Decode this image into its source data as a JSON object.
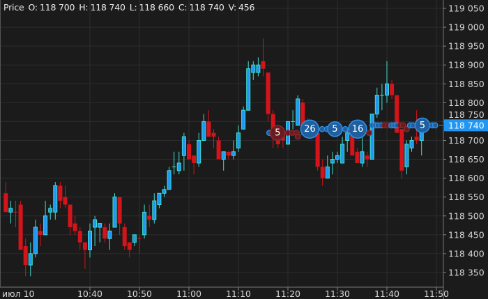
{
  "header": {
    "instrument": "Price",
    "open_label": "O:",
    "open": "118 700",
    "high_label": "H:",
    "high": "118 740",
    "low_label": "L:",
    "low": "118 660",
    "close_label": "C:",
    "close": "118 740",
    "volume_label": "V:",
    "volume": "456"
  },
  "current_price_label": "118 740",
  "colors": {
    "background": "#1b1b1b",
    "grid": "#2d2d2d",
    "bull_body": "#2196f3",
    "bull_outline": "#3fe0d0",
    "bear": "#d4141a",
    "price_tag": "#2196f3",
    "buy_marker": "#1f5f9e",
    "buy_marker_border": "#3190ea",
    "sell_marker": "#6b1b1f",
    "sell_marker_border": "#8a2b30"
  },
  "chart_data": {
    "type": "candlestick",
    "interval": "1 minute",
    "date_label": "июл 10",
    "x_ticks": [
      "10:40",
      "10:50",
      "11:00",
      "11:10",
      "11:20",
      "11:30",
      "11:40",
      "11:50"
    ],
    "y_ticks": [
      "119 050",
      "119 000",
      "118 950",
      "118 900",
      "118 850",
      "118 800",
      "118 750",
      "118 700",
      "118 650",
      "118 600",
      "118 550",
      "118 500",
      "118 450",
      "118 400",
      "118 350"
    ],
    "ylim": [
      118325,
      119070
    ],
    "grid": true,
    "last_price": 118740,
    "candles_fields": [
      "time",
      "open",
      "high",
      "low",
      "close"
    ],
    "candles": [
      [
        "10:23",
        118560,
        118590,
        118510,
        118510
      ],
      [
        "10:24",
        118510,
        118540,
        118480,
        118520
      ],
      [
        "10:25",
        118510,
        118540,
        118470,
        118510,
        "down"
      ],
      [
        "10:26",
        118530,
        118540,
        118410,
        118410
      ],
      [
        "10:27",
        118420,
        118440,
        118340,
        118370
      ],
      [
        "10:28",
        118370,
        118430,
        118340,
        118400
      ],
      [
        "10:29",
        118400,
        118490,
        118390,
        118470
      ],
      [
        "10:30",
        118460,
        118480,
        118420,
        118450
      ],
      [
        "10:31",
        118450,
        118540,
        118450,
        118500
      ],
      [
        "10:32",
        118510,
        118530,
        118490,
        118520
      ],
      [
        "10:33",
        118510,
        118590,
        118490,
        118580
      ],
      [
        "10:34",
        118580,
        118590,
        118520,
        118540
      ],
      [
        "10:35",
        118550,
        118580,
        118520,
        118530
      ],
      [
        "10:36",
        118530,
        118530,
        118450,
        118470
      ],
      [
        "10:37",
        118480,
        118500,
        118450,
        118460
      ],
      [
        "10:38",
        118460,
        118470,
        118410,
        118430
      ],
      [
        "10:39",
        118430,
        118430,
        118360,
        118410
      ],
      [
        "10:40",
        118410,
        118480,
        118390,
        118460
      ],
      [
        "10:41",
        118470,
        118500,
        118420,
        118490
      ],
      [
        "10:42",
        118470,
        118480,
        118430,
        118480
      ],
      [
        "10:43",
        118470,
        118480,
        118430,
        118440
      ],
      [
        "10:44",
        118440,
        118480,
        118410,
        118460
      ],
      [
        "10:45",
        118470,
        118560,
        118470,
        118550
      ],
      [
        "10:46",
        118550,
        118550,
        118450,
        118480
      ],
      [
        "10:47",
        118470,
        118480,
        118410,
        118420
      ],
      [
        "10:48",
        118430,
        118430,
        118390,
        118410
      ],
      [
        "10:49",
        118430,
        118450,
        118420,
        118450
      ],
      [
        "10:50",
        118440,
        118450,
        118400,
        118440,
        "down"
      ],
      [
        "10:51",
        118450,
        118530,
        118440,
        118510
      ],
      [
        "10:52",
        118500,
        118530,
        118470,
        118490
      ],
      [
        "10:53",
        118490,
        118560,
        118480,
        118540
      ],
      [
        "10:54",
        118530,
        118560,
        118520,
        118560
      ],
      [
        "10:55",
        118560,
        118580,
        118550,
        118570
      ],
      [
        "10:56",
        118570,
        118630,
        118570,
        118620
      ],
      [
        "10:57",
        118630,
        118670,
        118610,
        118630
      ],
      [
        "10:58",
        118620,
        118670,
        118610,
        118640
      ],
      [
        "10:59",
        118660,
        118720,
        118620,
        118710
      ],
      [
        "11:00",
        118690,
        118700,
        118650,
        118650
      ],
      [
        "11:01",
        118660,
        118660,
        118610,
        118640
      ],
      [
        "11:02",
        118640,
        118720,
        118630,
        118700
      ],
      [
        "11:03",
        118700,
        118770,
        118700,
        118750
      ],
      [
        "11:04",
        118750,
        118780,
        118710,
        118710
      ],
      [
        "11:05",
        118720,
        118730,
        118680,
        118710
      ],
      [
        "11:06",
        118700,
        118710,
        118650,
        118650
      ],
      [
        "11:07",
        118650,
        118670,
        118620,
        118670
      ],
      [
        "11:08",
        118670,
        118670,
        118650,
        118660
      ],
      [
        "11:09",
        118660,
        118700,
        118650,
        118670
      ],
      [
        "11:10",
        118680,
        118740,
        118670,
        118720
      ],
      [
        "11:11",
        118730,
        118790,
        118730,
        118780
      ],
      [
        "11:12",
        118780,
        118910,
        118780,
        118890
      ],
      [
        "11:13",
        118880,
        118910,
        118860,
        118900
      ],
      [
        "11:14",
        118880,
        118920,
        118870,
        118900
      ],
      [
        "11:15",
        118910,
        118970,
        118870,
        118890
      ],
      [
        "11:16",
        118880,
        118880,
        118750,
        118770
      ],
      [
        "11:17",
        118770,
        118780,
        118680,
        118710
      ],
      [
        "11:18",
        118710,
        118710,
        118680,
        118690
      ],
      [
        "11:19",
        118710,
        118720,
        118680,
        118700
      ],
      [
        "11:20",
        118690,
        118750,
        118690,
        118750
      ],
      [
        "11:21",
        118750,
        118780,
        118730,
        118750
      ],
      [
        "11:22",
        118740,
        118820,
        118740,
        118810
      ],
      [
        "11:23",
        118800,
        118810,
        118730,
        118740
      ],
      [
        "11:24",
        118740,
        118760,
        118720,
        118730
      ],
      [
        "11:25",
        118730,
        118740,
        118710,
        118720
      ],
      [
        "11:26",
        118720,
        118720,
        118620,
        118630
      ],
      [
        "11:27",
        118630,
        118650,
        118580,
        118600
      ],
      [
        "11:28",
        118600,
        118660,
        118600,
        118630
      ],
      [
        "11:29",
        118640,
        118670,
        118610,
        118650
      ],
      [
        "11:30",
        118650,
        118670,
        118640,
        118660
      ],
      [
        "11:31",
        118640,
        118710,
        118640,
        118690
      ],
      [
        "11:32",
        118700,
        118730,
        118670,
        118720
      ],
      [
        "11:33",
        118720,
        118720,
        118660,
        118660
      ],
      [
        "11:34",
        118670,
        118680,
        118640,
        118640
      ],
      [
        "11:35",
        118640,
        118720,
        118630,
        118670
      ],
      [
        "11:36",
        118660,
        118670,
        118630,
        118650
      ],
      [
        "11:37",
        118650,
        118770,
        118650,
        118770
      ],
      [
        "11:38",
        118770,
        118840,
        118760,
        118820
      ],
      [
        "11:39",
        118820,
        118850,
        118780,
        118820
      ],
      [
        "11:40",
        118820,
        118910,
        118800,
        118850
      ],
      [
        "11:41",
        118850,
        118860,
        118810,
        118820
      ],
      [
        "11:42",
        118820,
        118820,
        118720,
        118720
      ],
      [
        "11:43",
        118730,
        118730,
        118600,
        118620
      ],
      [
        "11:44",
        118630,
        118700,
        118610,
        118690
      ],
      [
        "11:45",
        118680,
        118710,
        118670,
        118700
      ],
      [
        "11:46",
        118710,
        118780,
        118690,
        118700
      ],
      [
        "11:47",
        118700,
        118740,
        118660,
        118740
      ]
    ],
    "trade_markers_fields": [
      "time",
      "price",
      "side",
      "size"
    ],
    "trade_markers": [
      [
        "11:16:15",
        118720,
        "buy",
        ""
      ],
      [
        "11:17:55",
        118720,
        "sell",
        "5"
      ],
      [
        "11:20:00",
        118720,
        "sell",
        ""
      ],
      [
        "11:20:55",
        118720,
        "sell",
        ""
      ],
      [
        "11:21:45",
        118720,
        "sell",
        ""
      ],
      [
        "11:22:00",
        118710,
        "sell",
        ""
      ],
      [
        "11:24:25",
        118730,
        "buy",
        "26"
      ],
      [
        "11:26:55",
        118730,
        "buy",
        ""
      ],
      [
        "11:27:55",
        118730,
        "buy",
        ""
      ],
      [
        "11:29:30",
        118730,
        "buy",
        "5"
      ],
      [
        "11:31:35",
        118730,
        "buy",
        ""
      ],
      [
        "11:34:05",
        118730,
        "buy",
        "16"
      ],
      [
        "11:36:25",
        118720,
        "sell",
        ""
      ],
      [
        "11:37:05",
        118740,
        "buy",
        ""
      ],
      [
        "11:37:40",
        118740,
        "buy",
        ""
      ],
      [
        "11:38:10",
        118740,
        "buy",
        ""
      ],
      [
        "11:38:50",
        118740,
        "buy",
        ""
      ],
      [
        "11:39:30",
        118740,
        "sell",
        ""
      ],
      [
        "11:40:10",
        118740,
        "sell",
        ""
      ],
      [
        "11:40:55",
        118740,
        "buy",
        ""
      ],
      [
        "11:41:30",
        118740,
        "buy",
        ""
      ],
      [
        "11:42:00",
        118740,
        "buy",
        ""
      ],
      [
        "11:42:40",
        118740,
        "sell",
        ""
      ],
      [
        "11:43:15",
        118740,
        "sell",
        ""
      ],
      [
        "11:44:00",
        118730,
        "sell",
        ""
      ],
      [
        "11:44:40",
        118740,
        "buy",
        ""
      ],
      [
        "11:45:15",
        118740,
        "buy",
        ""
      ],
      [
        "11:47:10",
        118740,
        "buy",
        "5"
      ],
      [
        "11:49:10",
        118740,
        "buy",
        ""
      ],
      [
        "11:49:45",
        118740,
        "buy",
        ""
      ]
    ]
  }
}
